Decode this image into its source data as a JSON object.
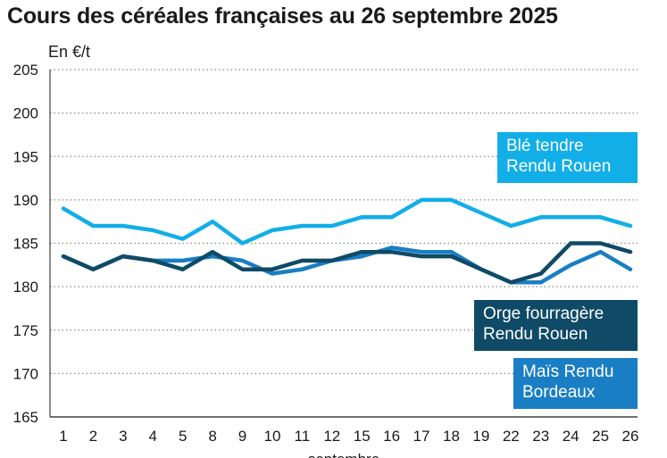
{
  "chart_data": {
    "type": "line",
    "title": "Cours des céréales françaises au 26 septembre 2025",
    "ylabel": "En €/t",
    "xlabel": "septembre",
    "ylim": [
      165,
      205
    ],
    "yticks": [
      165,
      170,
      175,
      180,
      185,
      190,
      195,
      200,
      205
    ],
    "grid": true,
    "x": [
      "1",
      "2",
      "3",
      "4",
      "5",
      "8",
      "9",
      "10",
      "11",
      "12",
      "15",
      "16",
      "17",
      "18",
      "19",
      "22",
      "23",
      "24",
      "25",
      "26"
    ],
    "series": [
      {
        "name": "Blé tendre Rendu Rouen",
        "name_lines": [
          "Blé tendre",
          "Rendu Rouen"
        ],
        "color": "#12aee8",
        "values": [
          189,
          187,
          187,
          186.5,
          185.5,
          187.5,
          185,
          186.5,
          187,
          187,
          188,
          188,
          190,
          190,
          188.5,
          187,
          188,
          188,
          188,
          187
        ]
      },
      {
        "name": "Orge fourragère Rendu Rouen",
        "name_lines": [
          "Orge fourragère",
          "Rendu Rouen"
        ],
        "color": "#0f4a66",
        "values": [
          183.5,
          182,
          183.5,
          183,
          182,
          184,
          182,
          182,
          183,
          183,
          184,
          184,
          183.5,
          183.5,
          182,
          180.5,
          181.5,
          185,
          185,
          184
        ]
      },
      {
        "name": "Maïs Rendu Bordeaux",
        "name_lines": [
          "Maïs Rendu",
          "Bordeaux"
        ],
        "color": "#1a7ec4",
        "values": [
          183.5,
          182,
          183.5,
          183,
          183,
          183.5,
          183,
          181.5,
          182,
          183,
          183.5,
          184.5,
          184,
          184,
          182,
          180.5,
          180.5,
          182.5,
          184,
          182
        ]
      }
    ],
    "legend_placement": "right, next to lines"
  }
}
